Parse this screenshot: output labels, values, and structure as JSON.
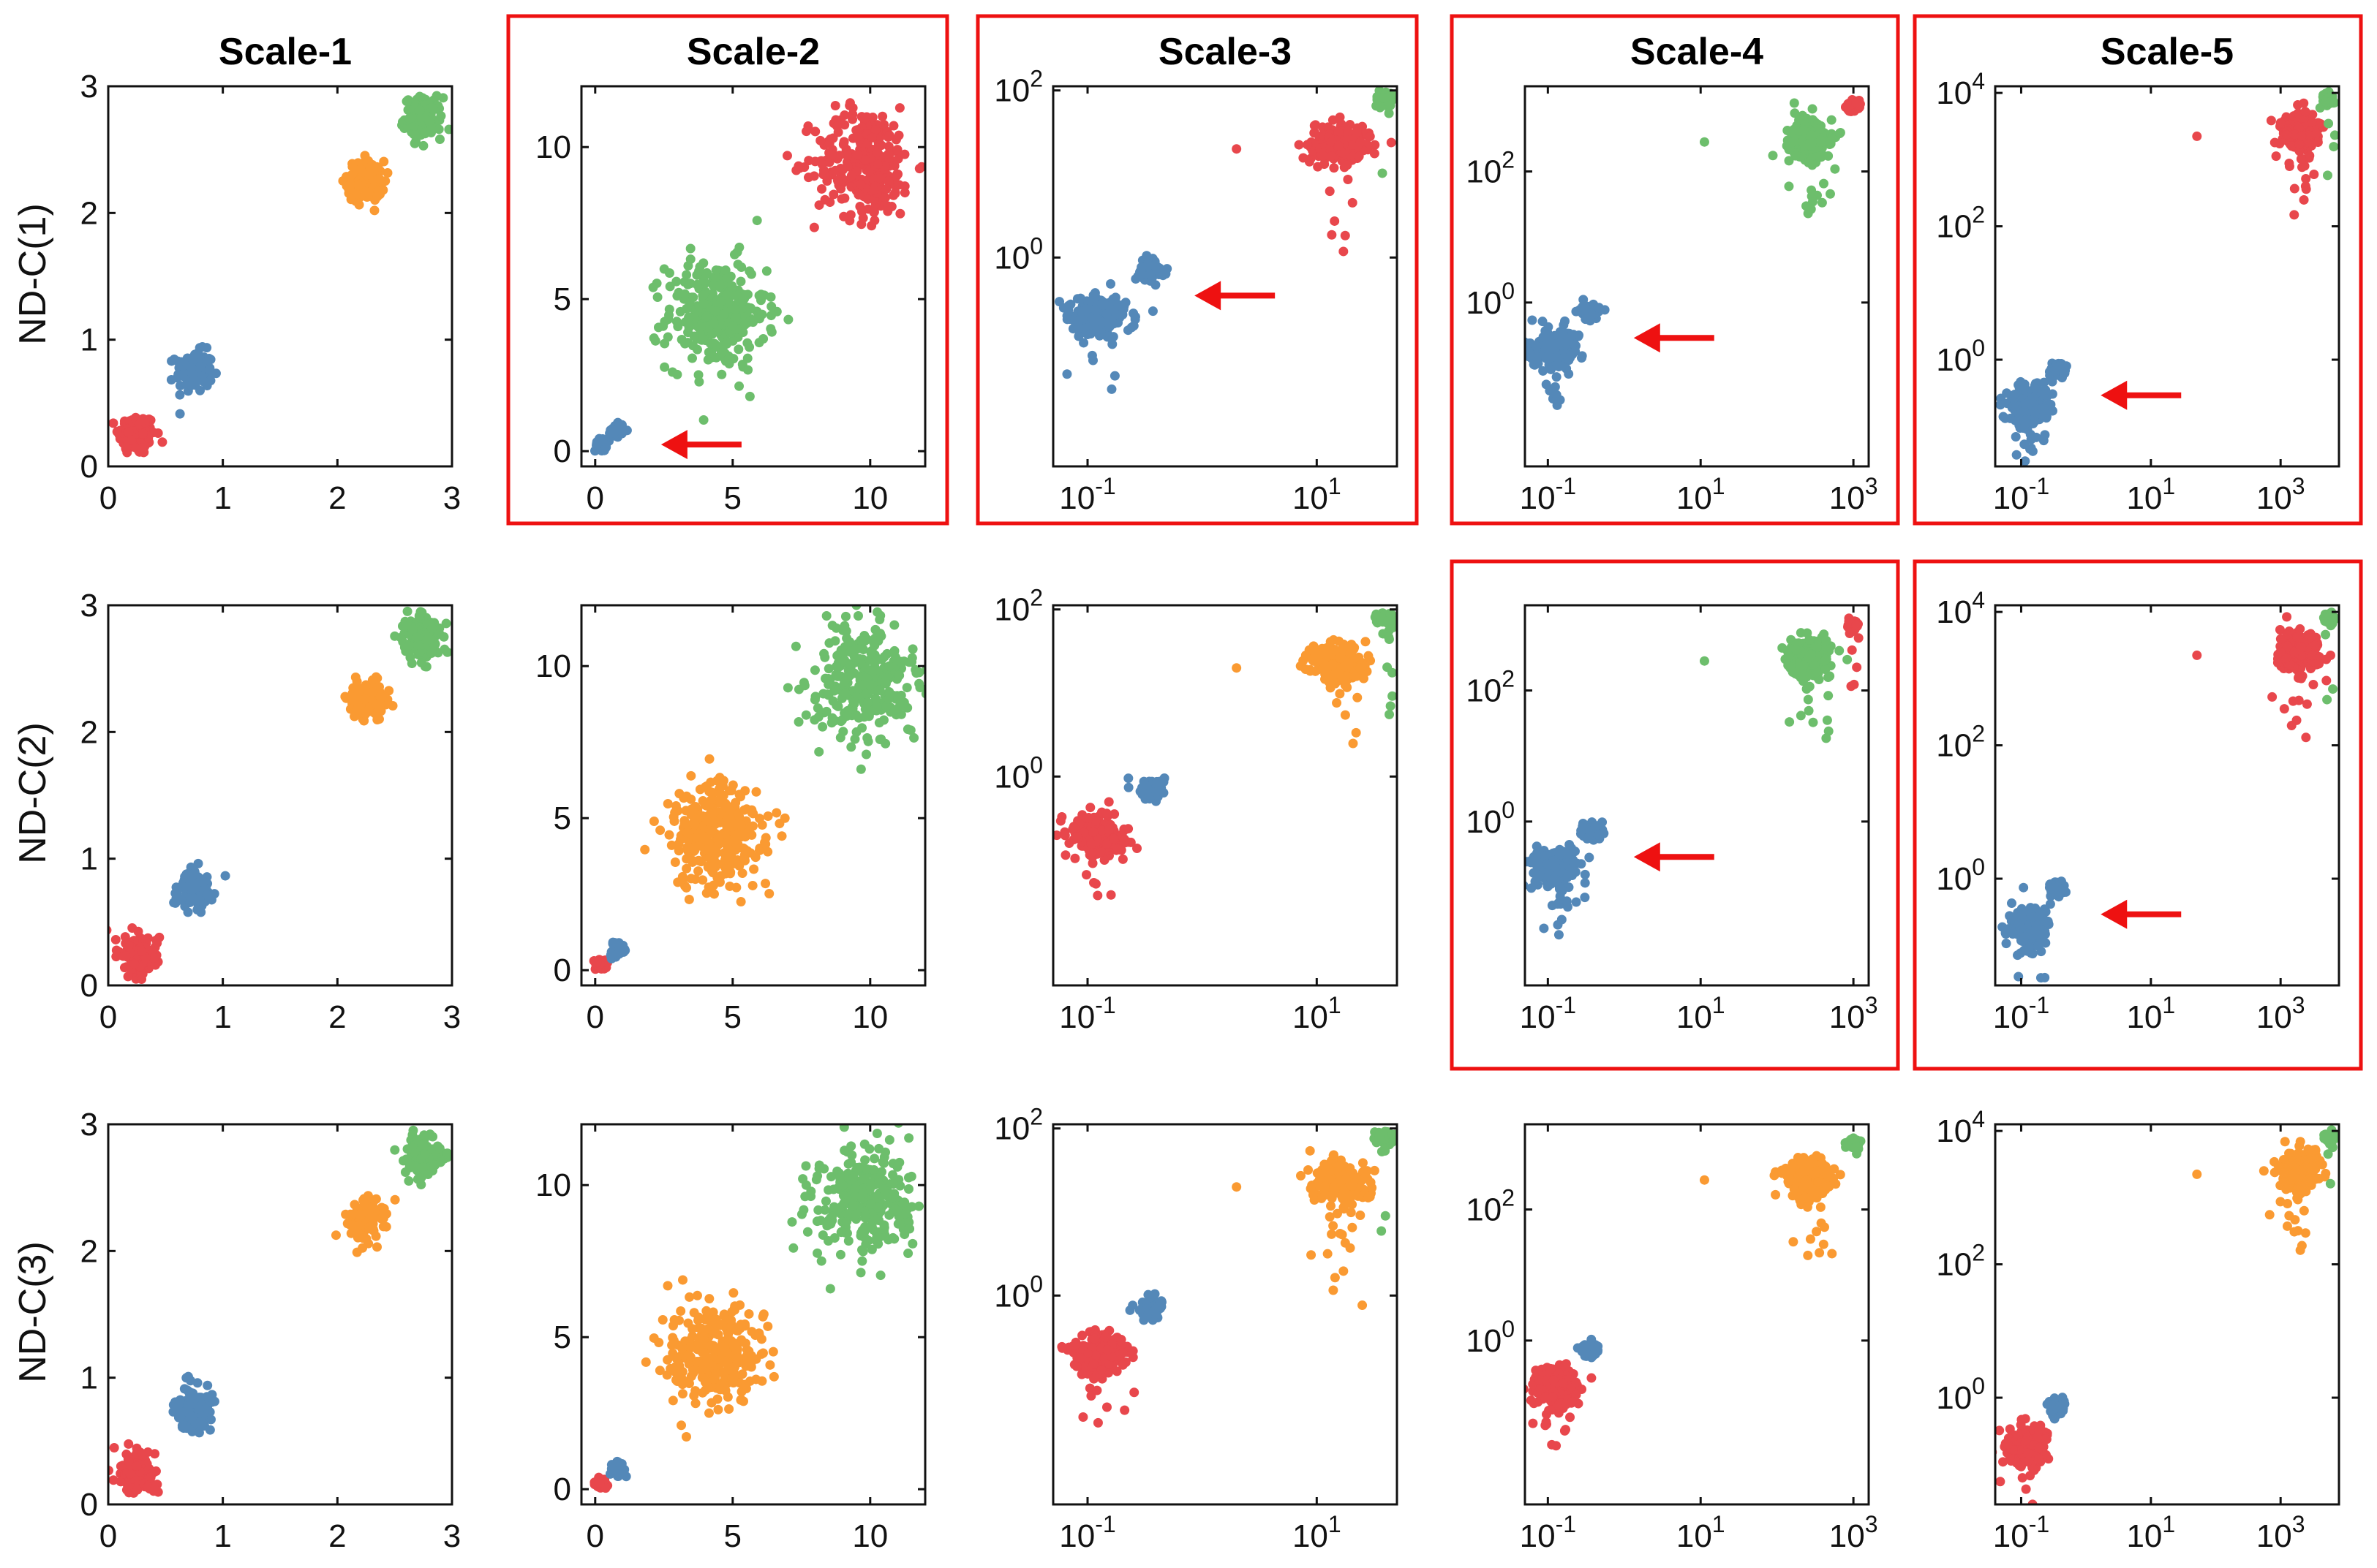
{
  "figure": {
    "column_titles": [
      "Scale-1",
      "Scale-2",
      "Scale-3",
      "Scale-4",
      "Scale-5"
    ],
    "row_labels": [
      "ND-C(1)",
      "ND-C(2)",
      "ND-C(3)"
    ],
    "highlighted_panels": [
      [
        0,
        1
      ],
      [
        0,
        2
      ],
      [
        0,
        3
      ],
      [
        0,
        4
      ],
      [
        1,
        3
      ],
      [
        1,
        4
      ]
    ],
    "arrow_panels": [
      [
        0,
        1
      ],
      [
        0,
        2
      ],
      [
        0,
        3
      ],
      [
        0,
        4
      ],
      [
        1,
        3
      ],
      [
        1,
        4
      ]
    ]
  },
  "colors": {
    "red": "#E8474C",
    "blue": "#5488B8",
    "green": "#6DBE6C",
    "orange": "#FA9A32",
    "highlight": "#EE1111",
    "axis": "#111111"
  },
  "chart_data": {
    "type": "scatter",
    "note": "5 scales x 3 ND-C variants; each panel shows 4 Gaussian clusters",
    "clusters_per_scale": [
      {
        "scale": "Scale-1",
        "log": false,
        "xlim": [
          0,
          3
        ],
        "ylim": [
          0,
          3
        ],
        "xticks": [
          {
            "v": 0,
            "t": "0"
          },
          {
            "v": 1,
            "t": "1"
          },
          {
            "v": 2,
            "t": "2"
          },
          {
            "v": 3,
            "t": "3"
          }
        ],
        "yticks": [
          {
            "v": 0,
            "t": "0"
          },
          {
            "v": 1,
            "t": "1"
          },
          {
            "v": 2,
            "t": "2"
          },
          {
            "v": 3,
            "t": "3"
          }
        ],
        "centers": [
          [
            0.25,
            0.25
          ],
          [
            0.75,
            0.75
          ],
          [
            2.25,
            2.25
          ],
          [
            2.75,
            2.75
          ]
        ],
        "spread": [
          0.08,
          0.08,
          0.08,
          0.08
        ],
        "counts": [
          150,
          120,
          120,
          150
        ]
      },
      {
        "scale": "Scale-2",
        "log": false,
        "xlim": [
          -0.5,
          12
        ],
        "ylim": [
          -0.5,
          12
        ],
        "xticks": [
          {
            "v": 0,
            "t": "0"
          },
          {
            "v": 5,
            "t": "5"
          },
          {
            "v": 10,
            "t": "10"
          }
        ],
        "yticks": [
          {
            "v": 0,
            "t": "0"
          },
          {
            "v": 5,
            "t": "5"
          },
          {
            "v": 10,
            "t": "10"
          }
        ],
        "centers": [
          [
            0.2,
            0.2
          ],
          [
            0.8,
            0.7
          ],
          [
            4.4,
            4.5
          ],
          [
            9.8,
            9.5
          ]
        ],
        "spread": [
          0.1,
          0.12,
          0.9,
          0.9
        ],
        "counts": [
          40,
          40,
          300,
          300
        ]
      },
      {
        "scale": "Scale-3",
        "log": true,
        "xlim": [
          -1.3,
          1.7
        ],
        "ylim": [
          -2.5,
          2.05
        ],
        "xticks": [
          {
            "v": -1,
            "t": "10^-1"
          },
          {
            "v": 1,
            "t": "10^1"
          }
        ],
        "yticks": [
          {
            "v": 0,
            "t": "10^0"
          },
          {
            "v": 2,
            "t": "10^2"
          }
        ],
        "centers": [
          [
            -0.9,
            -0.7
          ],
          [
            -0.45,
            -0.15
          ],
          [
            1.2,
            1.35
          ],
          [
            1.6,
            1.9
          ]
        ],
        "spread": [
          0.12,
          0.06,
          0.12,
          0.04
        ],
        "counts": [
          220,
          60,
          220,
          70
        ]
      },
      {
        "scale": "Scale-4",
        "log": true,
        "xlim": [
          -1.3,
          3.2
        ],
        "ylim": [
          -2.5,
          3.3
        ],
        "xticks": [
          {
            "v": -1,
            "t": "10^-1"
          },
          {
            "v": 1,
            "t": "10^1"
          },
          {
            "v": 3,
            "t": "10^3"
          }
        ],
        "yticks": [
          {
            "v": 0,
            "t": "10^0"
          },
          {
            "v": 2,
            "t": "10^2"
          }
        ],
        "centers": [
          [
            -0.9,
            -0.7
          ],
          [
            -0.45,
            -0.15
          ],
          [
            2.4,
            2.5
          ],
          [
            3.0,
            3.0
          ]
        ],
        "spread": [
          0.15,
          0.06,
          0.15,
          0.04
        ],
        "counts": [
          220,
          60,
          220,
          70
        ]
      },
      {
        "scale": "Scale-5",
        "log": true,
        "xlim": [
          -1.4,
          3.9
        ],
        "ylim": [
          -1.6,
          4.1
        ],
        "xticks": [
          {
            "v": -1,
            "t": "10^-1"
          },
          {
            "v": 1,
            "t": "10^1"
          },
          {
            "v": 3,
            "t": "10^3"
          }
        ],
        "yticks": [
          {
            "v": 0,
            "t": "10^0"
          },
          {
            "v": 2,
            "t": "10^2"
          },
          {
            "v": 4,
            "t": "10^4"
          }
        ],
        "centers": [
          [
            -0.9,
            -0.7
          ],
          [
            -0.45,
            -0.15
          ],
          [
            3.3,
            3.4
          ],
          [
            3.75,
            3.9
          ]
        ],
        "spread": [
          0.15,
          0.06,
          0.15,
          0.04
        ],
        "counts": [
          220,
          60,
          220,
          70
        ]
      }
    ],
    "cluster_colors_by_row": [
      {
        "row": "ND-C(1)",
        "per_scale": [
          [
            "red",
            "blue",
            "orange",
            "green"
          ],
          [
            "blue",
            "blue",
            "green",
            "red"
          ],
          [
            "blue",
            "blue",
            "red",
            "green"
          ],
          [
            "blue",
            "blue",
            "green",
            "red"
          ],
          [
            "blue",
            "blue",
            "red",
            "green"
          ]
        ]
      },
      {
        "row": "ND-C(2)",
        "per_scale": [
          [
            "red",
            "blue",
            "orange",
            "green"
          ],
          [
            "red",
            "blue",
            "orange",
            "green"
          ],
          [
            "red",
            "blue",
            "orange",
            "green"
          ],
          [
            "blue",
            "blue",
            "green",
            "red"
          ],
          [
            "blue",
            "blue",
            "red",
            "green"
          ]
        ]
      },
      {
        "row": "ND-C(3)",
        "per_scale": [
          [
            "red",
            "blue",
            "orange",
            "green"
          ],
          [
            "red",
            "blue",
            "orange",
            "green"
          ],
          [
            "red",
            "blue",
            "orange",
            "green"
          ],
          [
            "red",
            "blue",
            "orange",
            "green"
          ],
          [
            "red",
            "blue",
            "orange",
            "green"
          ]
        ]
      }
    ]
  }
}
